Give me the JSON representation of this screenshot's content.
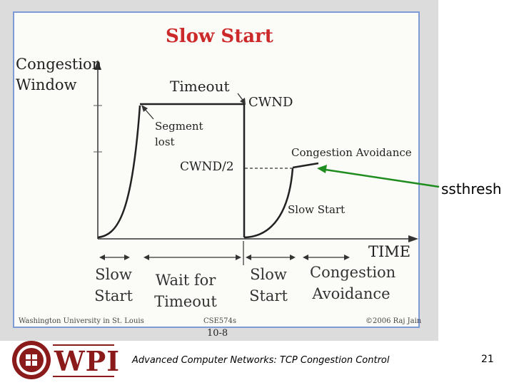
{
  "slide": {
    "title": "Slow Start",
    "y_axis_label_line1": "Congestion",
    "y_axis_label_line2": "Window",
    "x_axis_label": "TIME",
    "annotations": {
      "timeout": "Timeout",
      "cwnd": "CWND",
      "segment_lost_line1": "Segment",
      "segment_lost_line2": "lost",
      "cwnd_half": "CWND/2",
      "congestion_avoidance": "Congestion Avoidance",
      "slow_start": "Slow Start"
    },
    "phases": {
      "slow_start_1_line1": "Slow",
      "slow_start_1_line2": "Start",
      "wait_line1": "Wait for",
      "wait_line2": "Timeout",
      "slow_start_2_line1": "Slow",
      "slow_start_2_line2": "Start",
      "ca_line1": "Congestion",
      "ca_line2": "Avoidance"
    },
    "credits": {
      "left": "Washington University in St. Louis",
      "center": "CSE574s",
      "right": "©2006 Raj Jain",
      "page": "10-8"
    }
  },
  "overlay": {
    "ssthresh_label": "ssthresh",
    "arrow_color": "#1e8c1e"
  },
  "footer": {
    "logo_text": "WPI",
    "title": "Advanced Computer Networks: TCP Congestion Control",
    "page_number": "21"
  },
  "colors": {
    "title": "#cc2a2a",
    "frame_border": "#7f9bd6",
    "logo": "#8b1a1a"
  }
}
